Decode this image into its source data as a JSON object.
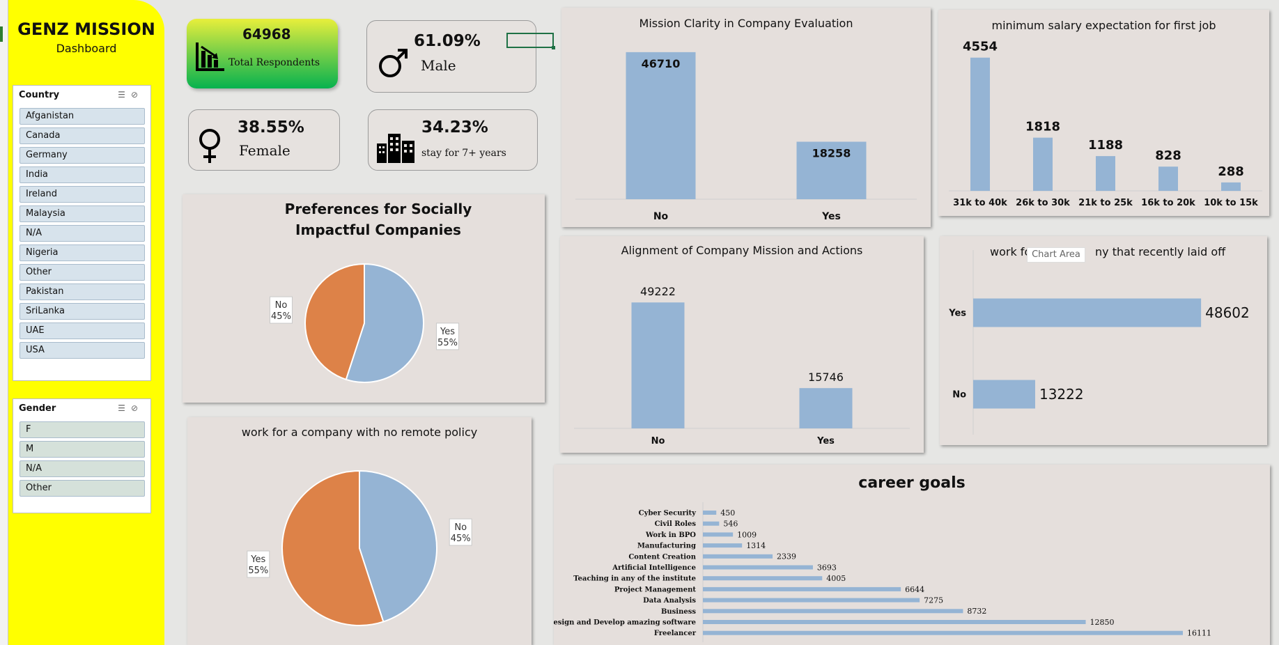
{
  "brand": {
    "title": "GENZ MISSION",
    "subtitle": "Dashboard"
  },
  "slicers": {
    "country": {
      "header": "Country",
      "items": [
        "Afganistan",
        "Canada",
        "Germany",
        "India",
        "Ireland",
        "Malaysia",
        "N/A",
        "Nigeria",
        "Other",
        "Pakistan",
        "SriLanka",
        "UAE",
        "USA"
      ]
    },
    "gender": {
      "header": "Gender",
      "items": [
        "F",
        "M",
        "N/A",
        "Other"
      ]
    }
  },
  "kpis": {
    "respondents": {
      "value": "64968",
      "label": "Total Respondents"
    },
    "male": {
      "value": "61.09%",
      "label": "Male"
    },
    "female": {
      "value": "38.55%",
      "label": "Female"
    },
    "stay": {
      "value": "34.23%",
      "label": "stay for  7+ years"
    }
  },
  "tooltip": "Chart Area",
  "colors": {
    "blue": "#95b4d4",
    "orange": "#dd8248",
    "sidebar": "#ffff00",
    "green": "#07b24f"
  },
  "chart_data": [
    {
      "id": "clarity",
      "type": "bar",
      "title": "Mission Clarity in Company Evaluation",
      "categories": [
        "No",
        "Yes"
      ],
      "values": [
        46710,
        18258
      ],
      "ylim": [
        0,
        50000
      ]
    },
    {
      "id": "salary",
      "type": "bar",
      "title": "minimum  salary expectation for  first job",
      "categories": [
        "31k to 40k",
        "26k to 30k",
        "21k to 25k",
        "16k to 20k",
        "10k to 15k"
      ],
      "values": [
        4554,
        1818,
        1188,
        828,
        288
      ],
      "ylim": [
        0,
        5000
      ]
    },
    {
      "id": "impact",
      "type": "pie",
      "title": "Preferences for Socially Impactful Companies",
      "labels": [
        "Yes",
        "No"
      ],
      "values": [
        55,
        45
      ],
      "display": [
        "55%",
        "45%"
      ],
      "colors": [
        "#95b4d4",
        "#dd8248"
      ]
    },
    {
      "id": "alignment",
      "type": "bar",
      "title": "Alignment of Company Mission and Actions",
      "categories": [
        "No",
        "Yes"
      ],
      "values": [
        49222,
        15746
      ],
      "ylim": [
        0,
        55000
      ]
    },
    {
      "id": "layoff",
      "type": "bar",
      "orientation": "horizontal",
      "title_left": "work fo",
      "title_right": "ny  that recently laid off",
      "categories": [
        "Yes",
        "No"
      ],
      "values": [
        48602,
        13222
      ],
      "xlim": [
        0,
        52000
      ]
    },
    {
      "id": "remote",
      "type": "pie",
      "title": "work for a company with no remote policy",
      "labels": [
        "No",
        "Yes"
      ],
      "values": [
        45,
        55
      ],
      "display": [
        "45%",
        "55%"
      ],
      "colors": [
        "#95b4d4",
        "#dd8248"
      ]
    },
    {
      "id": "career",
      "type": "bar",
      "orientation": "horizontal",
      "title": "career goals",
      "categories": [
        "Cyber Security",
        "Civil Roles",
        "Work in BPO",
        "Manufacturing",
        "Content Creation",
        "Artificial Intelligence",
        "Teaching in any of the institute",
        "Project Management",
        "Data Analysis",
        "Business",
        "Design and Develop amazing software",
        "Freelancer"
      ],
      "values": [
        450,
        546,
        1009,
        1314,
        2339,
        3693,
        4005,
        6644,
        7275,
        8732,
        12850,
        16111
      ],
      "xlim": [
        0,
        17000
      ]
    }
  ]
}
